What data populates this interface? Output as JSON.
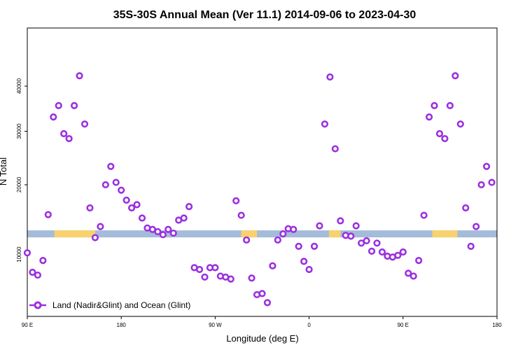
{
  "chart_data": {
    "type": "scatter",
    "title": "35S-30S Annual Mean (Ver 11.1)   2014-09-06 to 2023-04-30",
    "xlabel": "Longitude (deg E)",
    "ylabel": "N Total",
    "x_ticks": [
      {
        "value": -90,
        "label": "90 E"
      },
      {
        "value": 0,
        "label": "180"
      },
      {
        "value": 90,
        "label": "90 W"
      },
      {
        "value": 180,
        "label": "0"
      },
      {
        "value": 270,
        "label": "90 E"
      },
      {
        "value": 360,
        "label": "180"
      }
    ],
    "y_ticks": [
      {
        "value": 10000,
        "label": "10000"
      },
      {
        "value": 20000,
        "label": "20000"
      },
      {
        "value": 30000,
        "label": "30000"
      },
      {
        "value": 40000,
        "label": "40000"
      }
    ],
    "xlim": [
      -90,
      360
    ],
    "ylim": [
      4000,
      55000
    ],
    "y_scale": "sqrt",
    "legend": {
      "position": "bottom-left"
    },
    "colors": {
      "series": "#9b30e0",
      "ocean": "#a4bcd9",
      "land": "#f9d26e"
    },
    "series": [
      {
        "name": "Land (Nadir&Glint) and Ocean (Glint)",
        "points": [
          [
            -90,
            10200
          ],
          [
            -85,
            8000
          ],
          [
            -80,
            7700
          ],
          [
            -75,
            9300
          ],
          [
            -70,
            15300
          ],
          [
            -65,
            33000
          ],
          [
            -60,
            35500
          ],
          [
            -55,
            29500
          ],
          [
            -50,
            28500
          ],
          [
            -45,
            35500
          ],
          [
            -40,
            42500
          ],
          [
            -35,
            31500
          ],
          [
            -30,
            16300
          ],
          [
            -25,
            12100
          ],
          [
            -20,
            13600
          ],
          [
            -15,
            20000
          ],
          [
            -10,
            23200
          ],
          [
            -5,
            20400
          ],
          [
            0,
            19100
          ],
          [
            5,
            17500
          ],
          [
            10,
            16300
          ],
          [
            15,
            16800
          ],
          [
            20,
            14800
          ],
          [
            25,
            13400
          ],
          [
            30,
            13200
          ],
          [
            35,
            12900
          ],
          [
            40,
            12500
          ],
          [
            45,
            13200
          ],
          [
            50,
            12700
          ],
          [
            55,
            14500
          ],
          [
            60,
            14800
          ],
          [
            65,
            16500
          ],
          [
            70,
            8500
          ],
          [
            75,
            8300
          ],
          [
            80,
            7500
          ],
          [
            85,
            8500
          ],
          [
            90,
            8500
          ],
          [
            95,
            7600
          ],
          [
            100,
            7500
          ],
          [
            105,
            7300
          ],
          [
            110,
            17400
          ],
          [
            115,
            15200
          ],
          [
            120,
            11800
          ],
          [
            125,
            7400
          ],
          [
            130,
            5800
          ],
          [
            135,
            5900
          ],
          [
            140,
            5100
          ],
          [
            145,
            8700
          ],
          [
            150,
            11800
          ],
          [
            155,
            12600
          ],
          [
            160,
            13300
          ],
          [
            165,
            13200
          ],
          [
            170,
            11000
          ],
          [
            175,
            9200
          ],
          [
            180,
            8300
          ],
          [
            185,
            11000
          ],
          [
            190,
            13700
          ],
          [
            195,
            31500
          ],
          [
            200,
            42200
          ],
          [
            205,
            26500
          ],
          [
            210,
            14400
          ],
          [
            215,
            12400
          ],
          [
            220,
            12300
          ],
          [
            225,
            13700
          ],
          [
            230,
            11400
          ],
          [
            235,
            11700
          ],
          [
            240,
            10400
          ],
          [
            245,
            11400
          ],
          [
            250,
            10300
          ],
          [
            255,
            9800
          ],
          [
            260,
            9700
          ],
          [
            265,
            9900
          ],
          [
            270,
            10300
          ],
          [
            275,
            7900
          ],
          [
            280,
            7600
          ],
          [
            285,
            9300
          ],
          [
            290,
            15200
          ],
          [
            295,
            33000
          ],
          [
            300,
            35500
          ],
          [
            305,
            29500
          ],
          [
            310,
            28500
          ],
          [
            315,
            35500
          ],
          [
            320,
            42500
          ],
          [
            325,
            31500
          ],
          [
            330,
            16300
          ],
          [
            335,
            11000
          ],
          [
            340,
            13600
          ],
          [
            345,
            20000
          ],
          [
            350,
            23200
          ],
          [
            355,
            20400
          ]
        ]
      }
    ],
    "surface_band": {
      "y": 12600,
      "land_segments": [
        [
          -64,
          -25
        ],
        [
          115,
          130
        ],
        [
          199,
          210
        ],
        [
          298,
          322
        ]
      ]
    }
  }
}
